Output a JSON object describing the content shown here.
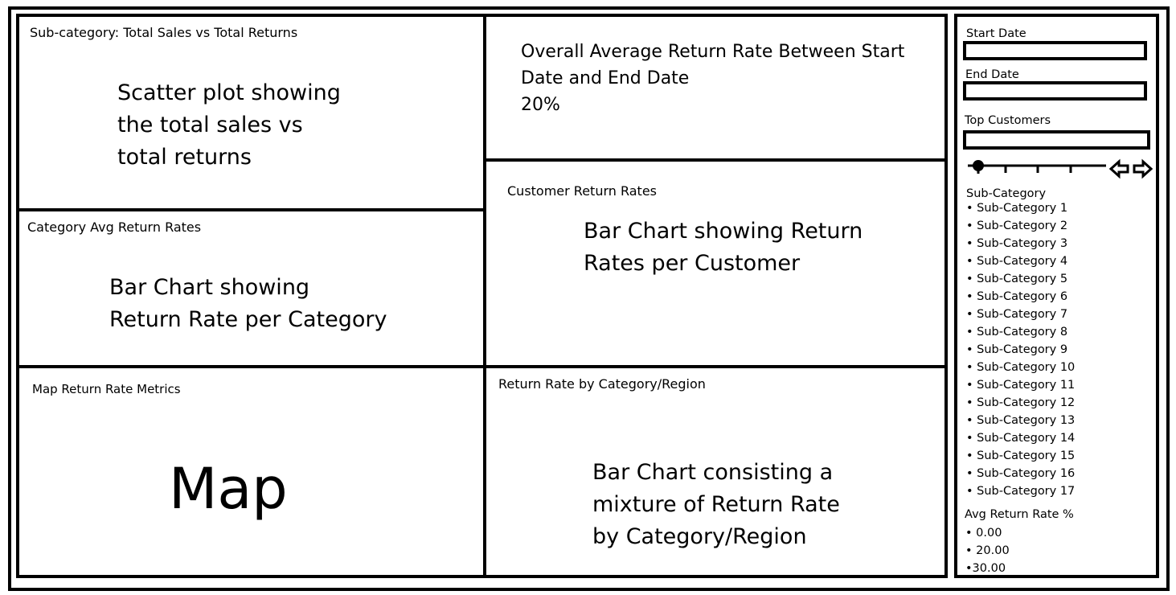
{
  "panels": {
    "scatter": {
      "title": "Sub-category: Total Sales vs Total Returns",
      "description": [
        "Scatter plot showing",
        "the total sales vs",
        "total returns"
      ]
    },
    "kpi": {
      "lines": [
        "Overall Average Return Rate Between Start",
        "Date and End Date"
      ],
      "value": "20%"
    },
    "category_avg": {
      "title": "Category Avg Return Rates",
      "description": [
        "Bar Chart showing",
        "Return Rate per Category"
      ]
    },
    "customer": {
      "title": "Customer Return Rates",
      "description": [
        "Bar Chart showing Return",
        "Rates per Customer"
      ]
    },
    "map": {
      "title": "Map Return Rate Metrics",
      "description": "Map"
    },
    "category_region": {
      "title": "Return Rate by Category/Region",
      "description": [
        "Bar Chart consisting a",
        "mixture of Return Rate",
        "by Category/Region"
      ]
    }
  },
  "filters": {
    "start_date_label": "Start Date",
    "start_date_value": "",
    "end_date_label": "End Date",
    "end_date_value": "",
    "top_customers_label": "Top Customers",
    "top_customers_value": "",
    "subcategory_label": "Sub-Category",
    "subcategories": [
      "• Sub-Category 1",
      "• Sub-Category 2",
      "• Sub-Category 3",
      "• Sub-Category 4",
      "• Sub-Category 5",
      "• Sub-Category 6",
      "• Sub-Category 7",
      "• Sub-Category 8",
      "• Sub-Category 9",
      "• Sub-Category 10",
      "• Sub-Category 11",
      "• Sub-Category 12",
      "• Sub-Category 13",
      "• Sub-Category 14",
      "• Sub-Category 15",
      "• Sub-Category 16",
      "• Sub-Category 17"
    ],
    "avg_return_label": "Avg Return Rate %",
    "avg_return_options": [
      "• 0.00",
      "• 20.00",
      "•30.00"
    ],
    "slider_icons": {
      "left": "left-arrow-icon",
      "right": "right-arrow-icon"
    }
  }
}
